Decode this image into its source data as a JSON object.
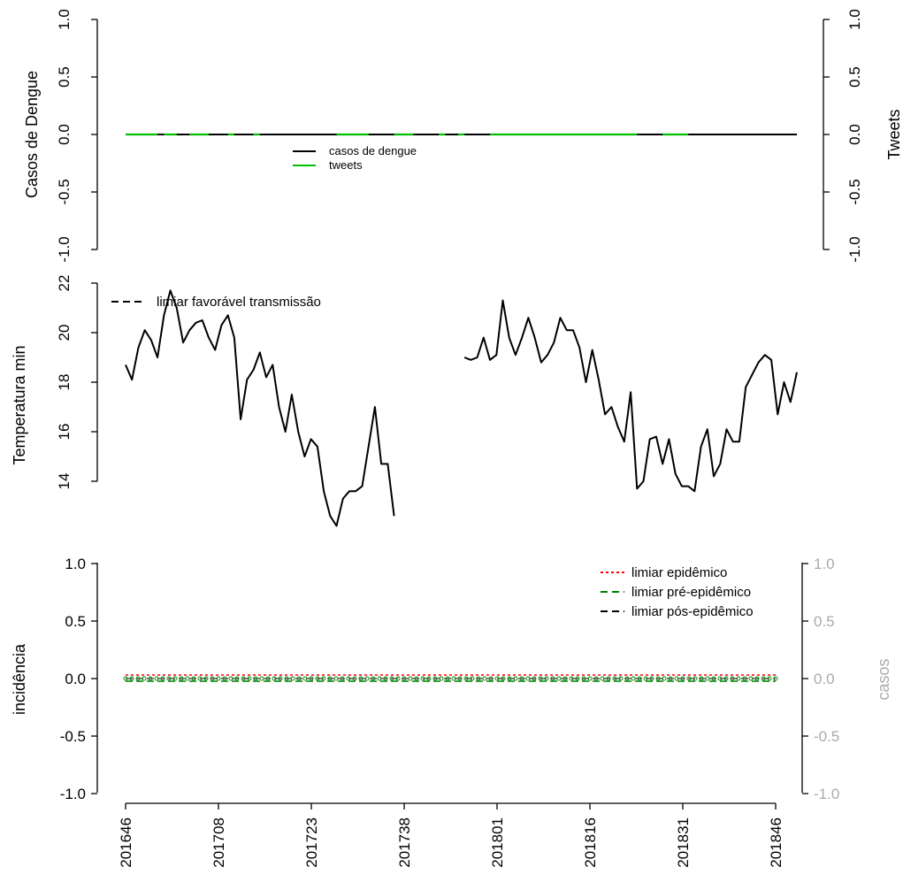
{
  "chart_data": [
    {
      "type": "line",
      "ylabel_left": "Casos de Dengue",
      "ylabel_right": "Tweets",
      "ylim": [
        -1.0,
        1.0
      ],
      "yticks": [
        "-1.0",
        "-0.5",
        "0.0",
        "0.5",
        "1.0"
      ],
      "legend": [
        "casos de dengue",
        "tweets"
      ],
      "legend_position": "top-left",
      "series": [
        {
          "name": "casos de dengue",
          "color": "#000000",
          "values_constant": 0
        },
        {
          "name": "tweets",
          "color": "#00c000",
          "values_constant": 0
        }
      ]
    },
    {
      "type": "line",
      "ylabel": "Temperatura min",
      "ylim": [
        12.5,
        22
      ],
      "yticks": [
        "14",
        "16",
        "18",
        "20",
        "22"
      ],
      "legend": [
        "limiar favorável transmissão"
      ],
      "legend_position": "top-left",
      "series": [
        {
          "name": "temperatura min",
          "color": "#000000",
          "values": [
            18.7,
            18.1,
            19.4,
            20.1,
            19.7,
            19.0,
            20.7,
            21.7,
            21.0,
            19.6,
            20.1,
            20.4,
            20.5,
            19.8,
            19.3,
            20.3,
            20.7,
            19.8,
            16.5,
            18.1,
            18.5,
            19.2,
            18.2,
            18.7,
            17.0,
            16.0,
            17.5,
            16.0,
            15.0,
            15.7,
            15.4,
            13.6,
            12.6,
            12.2,
            13.3,
            13.6,
            13.6,
            13.8,
            15.4,
            17.0,
            14.7,
            14.7,
            12.6,
            null,
            null,
            null,
            null,
            null,
            null,
            null,
            null,
            null,
            null,
            19.0,
            18.9,
            19.0,
            19.8,
            18.9,
            19.1,
            21.3,
            19.8,
            19.1,
            19.8,
            20.6,
            19.8,
            18.8,
            19.1,
            19.6,
            20.6,
            20.1,
            20.1,
            19.4,
            18.0,
            19.3,
            18.1,
            16.7,
            17.0,
            16.2,
            15.6,
            17.6,
            13.7,
            14.0,
            15.7,
            15.8,
            14.7,
            15.7,
            14.3,
            13.8,
            13.8,
            13.6,
            15.4,
            16.1,
            14.2,
            14.7,
            16.1,
            15.6,
            15.6,
            17.8,
            18.3,
            18.8,
            19.1,
            18.9,
            16.7,
            18.0,
            17.2,
            18.4
          ]
        }
      ]
    },
    {
      "type": "line",
      "ylabel_left": "incidência",
      "ylabel_right": "casos",
      "ylim": [
        -1.0,
        1.0
      ],
      "yticks": [
        "-1.0",
        "-0.5",
        "0.0",
        "0.5",
        "1.0"
      ],
      "legend": [
        "limiar epidêmico",
        "limiar pré-epidêmico",
        "limiar pós-epidêmico"
      ],
      "legend_position": "top-right",
      "legend_colors": [
        "#ff0000",
        "#008000",
        "#000000"
      ],
      "x_ticks": [
        "201646",
        "201708",
        "201723",
        "201738",
        "201801",
        "201816",
        "201831",
        "201846"
      ],
      "series": [
        {
          "name": "incidência",
          "color": "#008000",
          "values_constant": 0
        }
      ]
    }
  ]
}
